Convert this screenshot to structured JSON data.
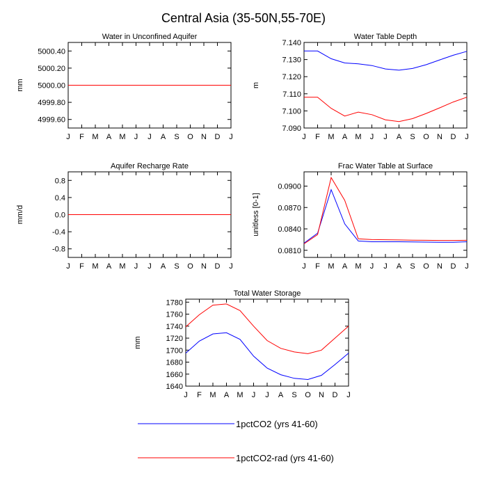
{
  "figure": {
    "title": "Central Asia (35-50N,55-70E)"
  },
  "legend": [
    {
      "name": "1pctCO2 (yrs 41-60)",
      "color": "#0000ff"
    },
    {
      "name": "1pctCO2-rad (yrs 41-60)",
      "color": "#ff0000"
    }
  ],
  "chart_data": [
    {
      "type": "line",
      "title": "Water in Unconfined Aquifer",
      "xlabel": "",
      "ylabel": "mm",
      "x": [
        "J",
        "F",
        "M",
        "A",
        "M",
        "J",
        "J",
        "A",
        "S",
        "O",
        "N",
        "D",
        "J"
      ],
      "ylim": [
        4999.5,
        5000.5
      ],
      "yticks": [
        4999.6,
        4999.8,
        5000.0,
        5000.2,
        5000.4
      ],
      "ytick_labels": [
        "4999.60",
        "4999.80",
        "5000.00",
        "5000.20",
        "5000.40"
      ],
      "series": [
        {
          "color": "#0000ff",
          "values": [
            5000,
            5000,
            5000,
            5000,
            5000,
            5000,
            5000,
            5000,
            5000,
            5000,
            5000,
            5000,
            5000
          ]
        },
        {
          "color": "#ff0000",
          "values": [
            5000,
            5000,
            5000,
            5000,
            5000,
            5000,
            5000,
            5000,
            5000,
            5000,
            5000,
            5000,
            5000
          ]
        }
      ]
    },
    {
      "type": "line",
      "title": "Water Table Depth",
      "xlabel": "",
      "ylabel": "m",
      "x": [
        "J",
        "F",
        "M",
        "A",
        "M",
        "J",
        "J",
        "A",
        "S",
        "O",
        "N",
        "D",
        "J"
      ],
      "ylim": [
        7.09,
        7.14
      ],
      "yticks": [
        7.09,
        7.1,
        7.11,
        7.12,
        7.13,
        7.14
      ],
      "ytick_labels": [
        "7.090",
        "7.100",
        "7.110",
        "7.120",
        "7.130",
        "7.140"
      ],
      "series": [
        {
          "color": "#0000ff",
          "values": [
            7.135,
            7.135,
            7.1305,
            7.128,
            7.1275,
            7.1265,
            7.1245,
            7.1238,
            7.1248,
            7.127,
            7.1298,
            7.1325,
            7.1348
          ]
        },
        {
          "color": "#ff0000",
          "values": [
            7.108,
            7.108,
            7.1015,
            7.097,
            7.0993,
            7.0978,
            7.0948,
            7.0938,
            7.0955,
            7.0985,
            7.1018,
            7.1052,
            7.108
          ]
        }
      ]
    },
    {
      "type": "line",
      "title": "Aquifer Recharge Rate",
      "xlabel": "",
      "ylabel": "mm/d",
      "x": [
        "J",
        "F",
        "M",
        "A",
        "M",
        "J",
        "J",
        "A",
        "S",
        "O",
        "N",
        "D",
        "J"
      ],
      "ylim": [
        -1,
        1
      ],
      "yticks": [
        -0.8,
        -0.4,
        0.0,
        0.4,
        0.8
      ],
      "ytick_labels": [
        "-0.8",
        "-0.4",
        "0.0",
        "0.4",
        "0.8"
      ],
      "series": [
        {
          "color": "#0000ff",
          "values": [
            0,
            0,
            0,
            0,
            0,
            0,
            0,
            0,
            0,
            0,
            0,
            0,
            0
          ]
        },
        {
          "color": "#ff0000",
          "values": [
            0,
            0,
            0,
            0,
            0,
            0,
            0,
            0,
            0,
            0,
            0,
            0,
            0
          ]
        }
      ]
    },
    {
      "type": "line",
      "title": "Frac Water Table at Surface",
      "xlabel": "",
      "ylabel": "unitless [0-1]",
      "x": [
        "J",
        "F",
        "M",
        "A",
        "M",
        "J",
        "J",
        "A",
        "S",
        "O",
        "N",
        "D",
        "J"
      ],
      "ylim": [
        0.08,
        0.092
      ],
      "yticks": [
        0.081,
        0.084,
        0.087,
        0.09
      ],
      "ytick_labels": [
        "0.0810",
        "0.0840",
        "0.0870",
        "0.0900"
      ],
      "series": [
        {
          "color": "#0000ff",
          "values": [
            0.082,
            0.0834,
            0.0895,
            0.0847,
            0.0823,
            0.0822,
            0.0822,
            0.0822,
            0.08218,
            0.08215,
            0.08212,
            0.08212,
            0.0822
          ]
        },
        {
          "color": "#ff0000",
          "values": [
            0.0819,
            0.0832,
            0.0912,
            0.088,
            0.0826,
            0.0825,
            0.08248,
            0.08245,
            0.08242,
            0.0824,
            0.08238,
            0.08238,
            0.0824
          ]
        }
      ]
    },
    {
      "type": "line",
      "title": "Total Water Storage",
      "xlabel": "",
      "ylabel": "mm",
      "x": [
        "J",
        "F",
        "M",
        "A",
        "M",
        "J",
        "J",
        "A",
        "S",
        "O",
        "N",
        "D",
        "J"
      ],
      "ylim": [
        1640,
        1785
      ],
      "yticks": [
        1640,
        1660,
        1680,
        1700,
        1720,
        1740,
        1760,
        1780
      ],
      "ytick_labels": [
        "1640",
        "1660",
        "1680",
        "1700",
        "1720",
        "1740",
        "1760",
        "1780"
      ],
      "series": [
        {
          "color": "#0000ff",
          "values": [
            1695,
            1715,
            1727,
            1729,
            1718,
            1690,
            1670,
            1659,
            1653,
            1651,
            1658,
            1676,
            1695
          ]
        },
        {
          "color": "#ff0000",
          "values": [
            1739,
            1759,
            1775,
            1777,
            1766,
            1740,
            1716,
            1703,
            1697,
            1694,
            1700,
            1720,
            1740
          ]
        }
      ]
    }
  ]
}
